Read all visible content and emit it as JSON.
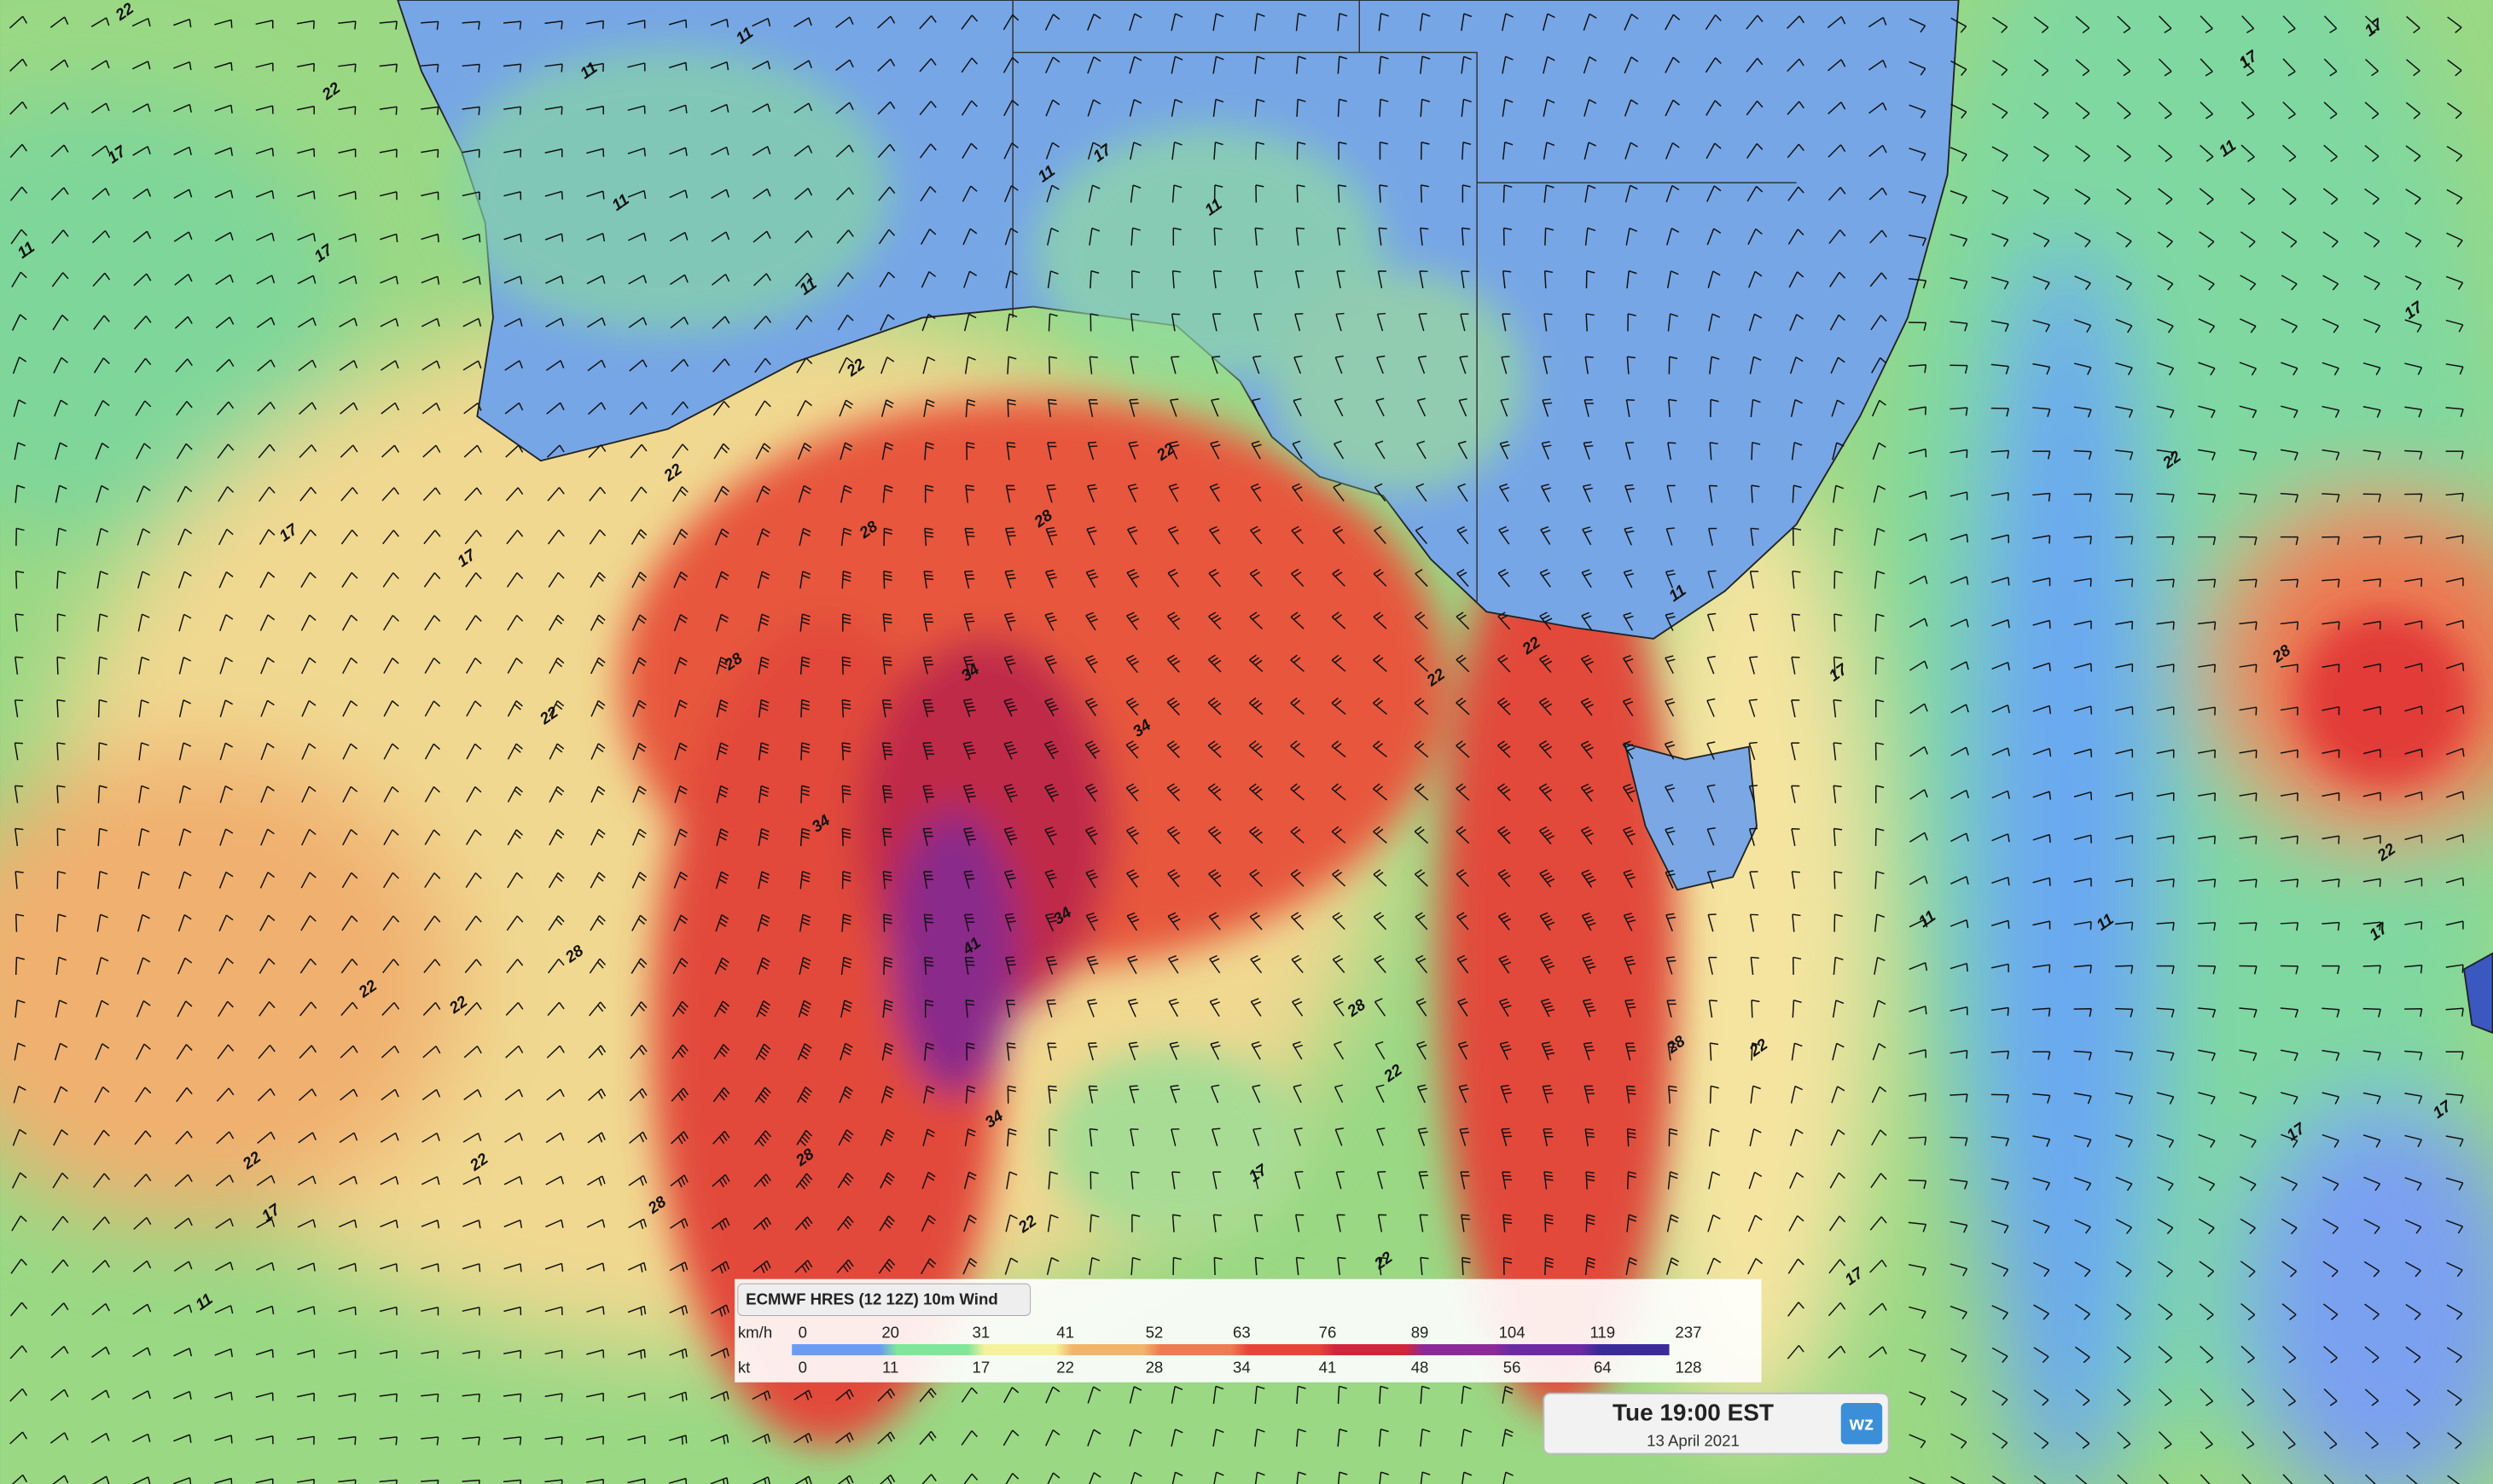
{
  "legend": {
    "title": "ECMWF HRES (12 12Z) 10m Wind",
    "rows": [
      {
        "unit": "km/h",
        "values": [
          0,
          20,
          31,
          41,
          52,
          63,
          76,
          89,
          104,
          119,
          237
        ]
      },
      {
        "unit": "kt",
        "values": [
          0,
          11,
          17,
          22,
          28,
          34,
          41,
          48,
          56,
          64,
          128
        ]
      }
    ]
  },
  "time_box": {
    "time": "Tue 19:00 EST",
    "date": "13 April 2021",
    "logo": "wz"
  },
  "contour_labels": [
    "22",
    "22",
    "11",
    "11",
    "17",
    "11",
    "17",
    "11",
    "11",
    "11",
    "17",
    "11",
    "22",
    "22",
    "22",
    "28",
    "28",
    "17",
    "17",
    "28",
    "34",
    "22",
    "34",
    "34",
    "34",
    "41",
    "28",
    "22",
    "22",
    "28",
    "22",
    "22",
    "22",
    "17",
    "11",
    "28",
    "28",
    "34",
    "22",
    "17",
    "22",
    "28",
    "22",
    "17",
    "17",
    "17",
    "22",
    "17",
    "17",
    "11",
    "17",
    "17",
    "22",
    "28",
    "11",
    "22",
    "22",
    "17",
    "11",
    "11"
  ]
}
